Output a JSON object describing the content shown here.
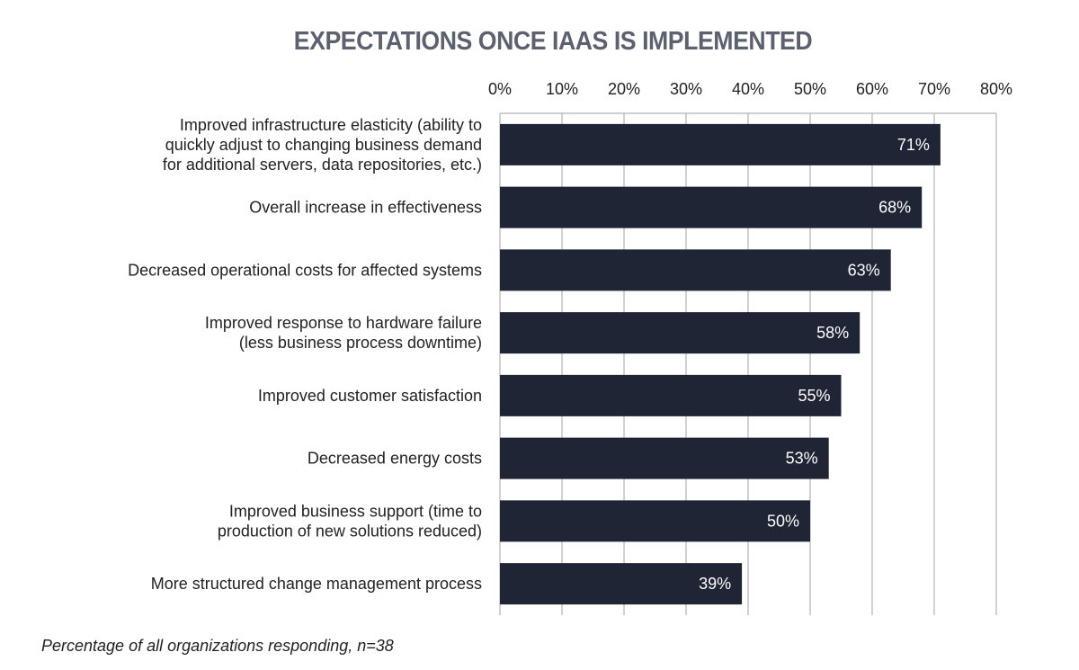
{
  "chart_data": {
    "type": "bar",
    "orientation": "horizontal",
    "title": "EXPECTATIONS ONCE IAAS IS IMPLEMENTED",
    "categories": [
      [
        "Improved infrastructure elasticity (ability to",
        "quickly adjust to changing business demand",
        "for additional servers, data repositories, etc.)"
      ],
      [
        "Overall increase in effectiveness"
      ],
      [
        "Decreased operational costs for affected systems"
      ],
      [
        "Improved response to hardware failure",
        "(less business process downtime)"
      ],
      [
        "Improved customer satisfaction"
      ],
      [
        "Decreased energy costs"
      ],
      [
        "Improved business support (time to",
        "production of new solutions reduced)"
      ],
      [
        "More structured change management process"
      ]
    ],
    "values": [
      71,
      68,
      63,
      58,
      55,
      53,
      50,
      39
    ],
    "data_labels": [
      "71%",
      "68%",
      "63%",
      "58%",
      "55%",
      "53%",
      "50%",
      "39%"
    ],
    "x_ticks": [
      "0%",
      "10%",
      "20%",
      "30%",
      "40%",
      "50%",
      "60%",
      "70%",
      "80%"
    ],
    "xlim": [
      0,
      80
    ],
    "grid": true,
    "bar_color": "#1f2535",
    "footnote": "Percentage of all organizations responding, n=38"
  }
}
